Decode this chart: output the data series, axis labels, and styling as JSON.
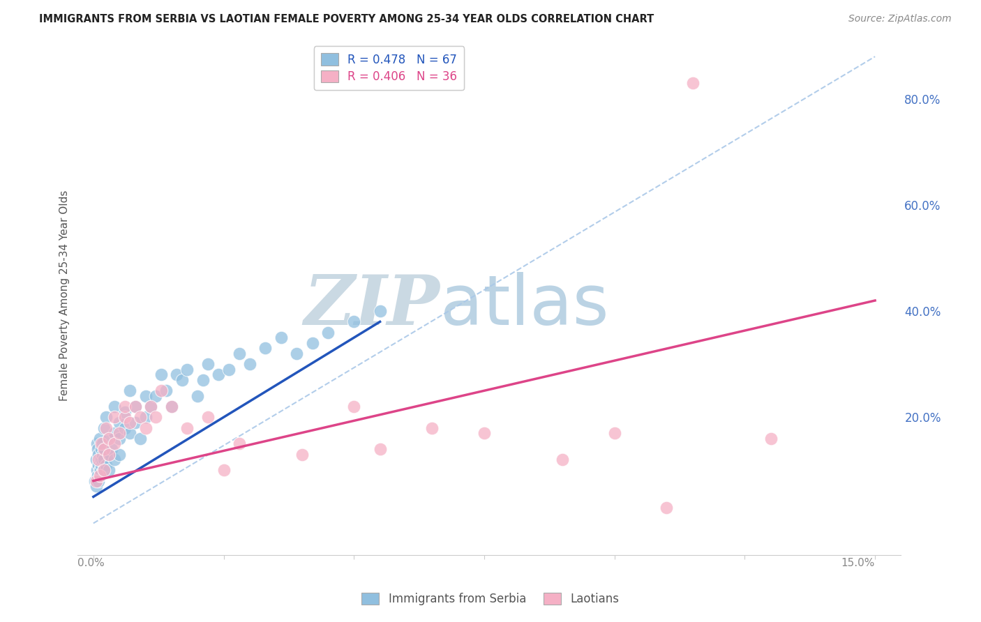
{
  "title": "IMMIGRANTS FROM SERBIA VS LAOTIAN FEMALE POVERTY AMONG 25-34 YEAR OLDS CORRELATION CHART",
  "source": "Source: ZipAtlas.com",
  "ylabel": "Female Poverty Among 25-34 Year Olds",
  "legend_serbia_r": "R = 0.478",
  "legend_serbia_n": "N = 67",
  "legend_laotian_r": "R = 0.406",
  "legend_laotian_n": "N = 36",
  "serbia_color": "#90bfdf",
  "laotian_color": "#f5b0c5",
  "serbia_line_color": "#2255bb",
  "laotian_line_color": "#dd4488",
  "ref_line_color": "#aac8e8",
  "watermark_zip_color": "#c8d8e8",
  "watermark_atlas_color": "#b8d0e8",
  "right_tick_color": "#4472c4",
  "xlabel_color": "#888888",
  "title_color": "#222222",
  "source_color": "#888888",
  "grid_color": "#e0e0e0",
  "xlim_min": -0.003,
  "xlim_max": 0.155,
  "ylim_min": -0.06,
  "ylim_max": 0.92,
  "serbia_x": [
    0.0003,
    0.0005,
    0.0005,
    0.0007,
    0.0007,
    0.0008,
    0.0008,
    0.001,
    0.001,
    0.001,
    0.0012,
    0.0012,
    0.0013,
    0.0013,
    0.0014,
    0.0015,
    0.0015,
    0.0016,
    0.0017,
    0.0018,
    0.0019,
    0.002,
    0.002,
    0.0022,
    0.0025,
    0.0025,
    0.003,
    0.003,
    0.003,
    0.0035,
    0.004,
    0.004,
    0.004,
    0.005,
    0.005,
    0.005,
    0.006,
    0.006,
    0.007,
    0.007,
    0.008,
    0.008,
    0.009,
    0.01,
    0.01,
    0.011,
    0.012,
    0.013,
    0.014,
    0.015,
    0.016,
    0.017,
    0.018,
    0.02,
    0.021,
    0.022,
    0.024,
    0.026,
    0.028,
    0.03,
    0.033,
    0.036,
    0.039,
    0.042,
    0.045,
    0.05,
    0.055
  ],
  "serbia_y": [
    0.08,
    0.12,
    0.07,
    0.15,
    0.1,
    0.09,
    0.14,
    0.13,
    0.11,
    0.08,
    0.1,
    0.16,
    0.09,
    0.12,
    0.1,
    0.11,
    0.14,
    0.12,
    0.13,
    0.15,
    0.1,
    0.12,
    0.18,
    0.14,
    0.11,
    0.2,
    0.13,
    0.16,
    0.1,
    0.14,
    0.17,
    0.22,
    0.12,
    0.19,
    0.16,
    0.13,
    0.21,
    0.18,
    0.17,
    0.25,
    0.19,
    0.22,
    0.16,
    0.2,
    0.24,
    0.22,
    0.24,
    0.28,
    0.25,
    0.22,
    0.28,
    0.27,
    0.29,
    0.24,
    0.27,
    0.3,
    0.28,
    0.29,
    0.32,
    0.3,
    0.33,
    0.35,
    0.32,
    0.34,
    0.36,
    0.38,
    0.4
  ],
  "laotian_x": [
    0.0005,
    0.001,
    0.0012,
    0.0015,
    0.002,
    0.002,
    0.0025,
    0.003,
    0.003,
    0.004,
    0.004,
    0.005,
    0.006,
    0.006,
    0.007,
    0.008,
    0.009,
    0.01,
    0.011,
    0.012,
    0.013,
    0.015,
    0.018,
    0.022,
    0.025,
    0.028,
    0.04,
    0.05,
    0.055,
    0.065,
    0.075,
    0.09,
    0.1,
    0.11,
    0.13,
    0.115
  ],
  "laotian_y": [
    0.08,
    0.12,
    0.09,
    0.15,
    0.14,
    0.1,
    0.18,
    0.16,
    0.13,
    0.2,
    0.15,
    0.17,
    0.2,
    0.22,
    0.19,
    0.22,
    0.2,
    0.18,
    0.22,
    0.2,
    0.25,
    0.22,
    0.18,
    0.2,
    0.1,
    0.15,
    0.13,
    0.22,
    0.14,
    0.18,
    0.17,
    0.12,
    0.17,
    0.03,
    0.16,
    0.83
  ],
  "serbia_line_x0": 0.0,
  "serbia_line_y0": 0.05,
  "serbia_line_x1": 0.055,
  "serbia_line_y1": 0.38,
  "laotian_line_x0": 0.0,
  "laotian_line_y0": 0.08,
  "laotian_line_x1": 0.15,
  "laotian_line_y1": 0.42,
  "ref_line_x0": 0.0,
  "ref_line_y0": 0.0,
  "ref_line_x1": 0.15,
  "ref_line_y1": 0.88
}
